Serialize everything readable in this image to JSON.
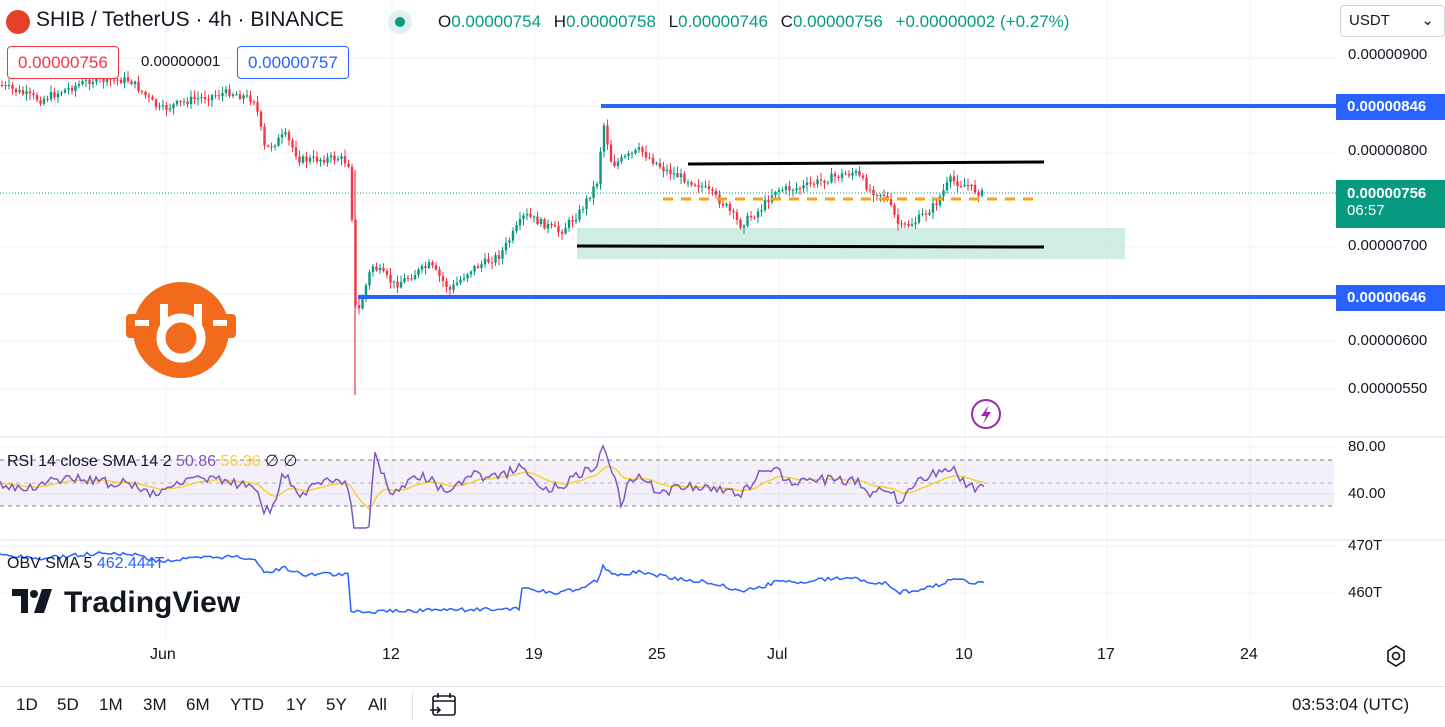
{
  "header": {
    "title": "SHIB / TetherUS · 4h · BINANCE",
    "ohlc": [
      {
        "key": "O",
        "value": "0.00000754"
      },
      {
        "key": "H",
        "value": "0.00000758"
      },
      {
        "key": "L",
        "value": "0.00000746"
      },
      {
        "key": "C",
        "value": "0.00000756"
      }
    ],
    "change": "+0.00000002 (+0.27%)"
  },
  "trade": {
    "sell_price": "0.00000756",
    "spread": "0.00000001",
    "buy_price": "0.00000757"
  },
  "currency_select": {
    "value": "USDT",
    "chevron": "chevron-down-icon"
  },
  "price_axis": {
    "labels": [
      "0.00000900",
      "0.00000800",
      "0.00000700",
      "0.00000600",
      "0.00000550"
    ],
    "resistance_badge": "0.00000846",
    "support_badge": "0.00000646",
    "current_price": "0.00000756",
    "countdown": "06:57"
  },
  "time_axis": {
    "labels": [
      "Jun",
      "12",
      "19",
      "25",
      "Jul",
      "10",
      "17",
      "24"
    ]
  },
  "rsi": {
    "name": "RSI",
    "params": "14 close SMA 14 2",
    "rsi_value": "50.86",
    "sma_value": "56.36",
    "extra": "∅ ∅",
    "axis_labels": [
      "80.00",
      "40.00"
    ]
  },
  "obv": {
    "name": "OBV",
    "params": "SMA 5",
    "value": "462.444T",
    "axis_labels": [
      "470T",
      "460T"
    ]
  },
  "logo": {
    "text": "TradingView"
  },
  "timeframes": [
    "1D",
    "5D",
    "1M",
    "3M",
    "6M",
    "YTD",
    "1Y",
    "5Y",
    "All"
  ],
  "clock": "03:53:04 (UTC)",
  "colors": {
    "up": "#089981",
    "down": "#f23645",
    "level_line": "#2962ff",
    "channel_line": "#000000",
    "mid_dash": "#f7a21b",
    "support_zone": "#bfe6dc",
    "rsi": "#7e57c2",
    "rsi_sma": "#f7d234",
    "obv": "#2962ff"
  }
}
